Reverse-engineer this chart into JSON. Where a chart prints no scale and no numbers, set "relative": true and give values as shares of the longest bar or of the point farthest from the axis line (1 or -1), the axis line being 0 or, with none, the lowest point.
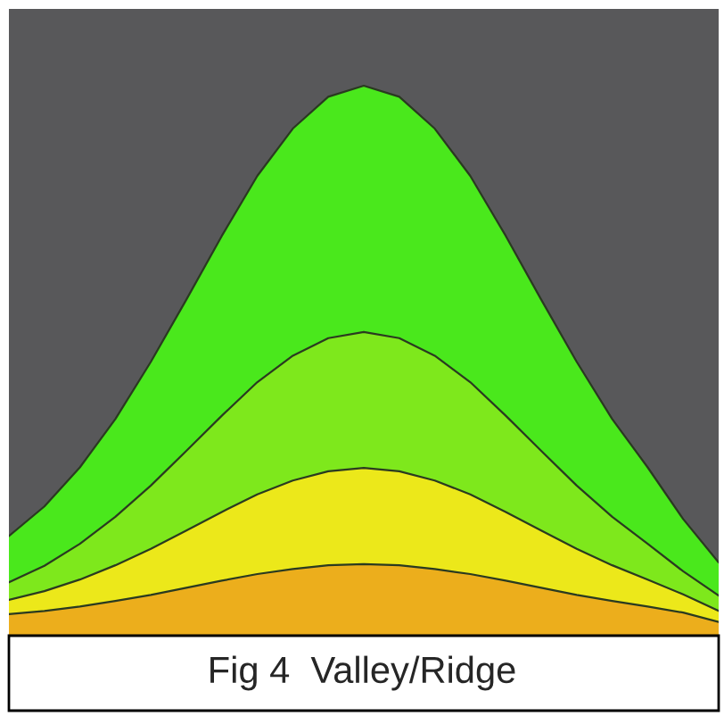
{
  "chart_data": {
    "type": "area",
    "stacked": true,
    "relative": true,
    "categories": [
      null,
      null,
      null,
      null,
      null,
      null,
      null,
      null,
      null,
      null,
      null,
      null,
      null,
      null,
      null,
      null,
      null,
      null,
      null,
      null,
      null
    ],
    "series": [
      {
        "color": "#ecae1c",
        "values": [
          0.039,
          0.045,
          0.053,
          0.063,
          0.074,
          0.087,
          0.1,
          0.112,
          0.121,
          0.128,
          0.13,
          0.128,
          0.121,
          0.112,
          0.1,
          0.087,
          0.074,
          0.063,
          0.053,
          0.042,
          0.025
        ]
      },
      {
        "color": "#ece81a",
        "values": [
          0.026,
          0.036,
          0.049,
          0.065,
          0.084,
          0.104,
          0.125,
          0.145,
          0.161,
          0.171,
          0.175,
          0.171,
          0.161,
          0.145,
          0.125,
          0.104,
          0.084,
          0.065,
          0.049,
          0.033,
          0.02
        ]
      },
      {
        "color": "#7ee81c",
        "values": [
          0.032,
          0.046,
          0.065,
          0.088,
          0.115,
          0.145,
          0.175,
          0.204,
          0.227,
          0.242,
          0.247,
          0.242,
          0.227,
          0.204,
          0.175,
          0.145,
          0.115,
          0.088,
          0.065,
          0.042,
          0.028
        ]
      },
      {
        "color": "#4ae81c",
        "values": [
          0.084,
          0.108,
          0.139,
          0.178,
          0.225,
          0.275,
          0.327,
          0.375,
          0.413,
          0.439,
          0.448,
          0.439,
          0.413,
          0.375,
          0.327,
          0.275,
          0.225,
          0.178,
          0.139,
          0.095,
          0.06
        ]
      }
    ],
    "annotations": [
      "Fig 4  Valley/Ridge"
    ]
  }
}
